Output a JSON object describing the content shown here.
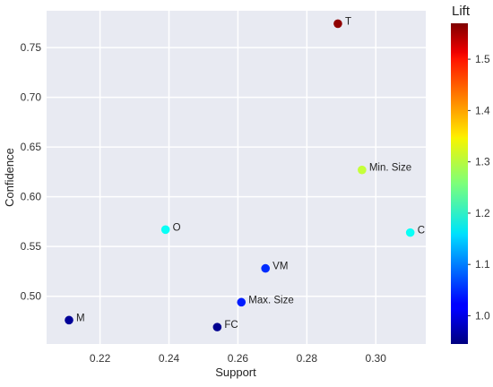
{
  "chart_data": {
    "type": "scatter",
    "xlabel": "Support",
    "ylabel": "Confidence",
    "xlim": [
      0.2045,
      0.3145
    ],
    "ylim": [
      0.452,
      0.787
    ],
    "x_ticks": [
      0.22,
      0.24,
      0.26,
      0.28,
      0.3
    ],
    "x_tick_labels": [
      "0.22",
      "0.24",
      "0.26",
      "0.28",
      "0.30"
    ],
    "y_ticks": [
      0.5,
      0.55,
      0.6,
      0.65,
      0.7,
      0.75
    ],
    "y_tick_labels": [
      "0.50",
      "0.55",
      "0.60",
      "0.65",
      "0.70",
      "0.75"
    ],
    "grid": true,
    "points": [
      {
        "label": "T",
        "support": 0.289,
        "confidence": 0.774,
        "lift": 1.56
      },
      {
        "label": "Min. Size",
        "support": 0.296,
        "confidence": 0.627,
        "lift": 1.3
      },
      {
        "label": "C",
        "support": 0.31,
        "confidence": 0.564,
        "lift": 1.185
      },
      {
        "label": "O",
        "support": 0.239,
        "confidence": 0.567,
        "lift": 1.185
      },
      {
        "label": "VM",
        "support": 0.268,
        "confidence": 0.528,
        "lift": 1.05
      },
      {
        "label": "Max. Size",
        "support": 0.261,
        "confidence": 0.494,
        "lift": 1.04
      },
      {
        "label": "M",
        "support": 0.211,
        "confidence": 0.476,
        "lift": 0.96
      },
      {
        "label": "FC",
        "support": 0.254,
        "confidence": 0.469,
        "lift": 0.955
      }
    ],
    "colorbar": {
      "title": "Lift",
      "colormap": "jet",
      "min": 0.945,
      "max": 1.57,
      "ticks": [
        1.0,
        1.1,
        1.2,
        1.3,
        1.4,
        1.5
      ],
      "tick_labels": [
        "1.0",
        "1.1",
        "1.2",
        "1.3",
        "1.4",
        "1.5"
      ]
    },
    "colors": {
      "plot_background": "#e8eaf2",
      "grid": "#ffffff"
    }
  }
}
